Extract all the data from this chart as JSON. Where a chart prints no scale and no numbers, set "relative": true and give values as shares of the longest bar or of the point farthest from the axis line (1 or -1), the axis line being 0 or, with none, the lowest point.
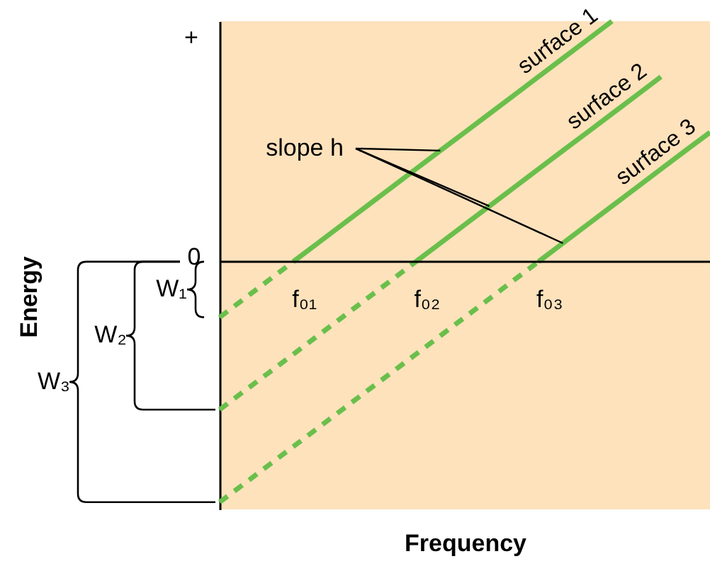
{
  "chart_data": {
    "type": "line",
    "relative": true,
    "xlabel": "Frequency",
    "categories": [
      null,
      null,
      null,
      null,
      null,
      null,
      null,
      null,
      null,
      null,
      null,
      null,
      null,
      null,
      null,
      null,
      null,
      null,
      null,
      null,
      null
    ],
    "series": [
      {
        "name": "surface 1",
        "color": "#6abf4b",
        "line_style": "solid",
        "values": [
          null,
          null,
          null,
          0,
          0.077,
          0.154,
          0.231,
          0.308,
          0.385,
          0.462,
          0.538,
          0.615,
          0.692,
          0.769,
          0.846,
          0.923,
          1,
          null,
          null,
          null,
          null
        ]
      },
      {
        "name": "surface 2",
        "color": "#6abf4b",
        "line_style": "solid",
        "values": [
          null,
          null,
          null,
          null,
          null,
          null,
          null,
          null,
          0,
          0.077,
          0.154,
          0.231,
          0.308,
          0.385,
          0.462,
          0.538,
          0.615,
          0.692,
          0.769,
          null,
          null
        ]
      },
      {
        "name": "surface 3",
        "color": "#6abf4b",
        "line_style": "solid",
        "values": [
          null,
          null,
          null,
          null,
          null,
          null,
          null,
          null,
          null,
          null,
          null,
          null,
          null,
          0,
          0.077,
          0.154,
          0.231,
          0.308,
          0.385,
          0.462,
          0.538
        ]
      },
      {
        "color": "#6abf4b",
        "line_style": "dashed",
        "values": [
          -0.231,
          -0.154,
          -0.077,
          0,
          null,
          null,
          null,
          null,
          null,
          null,
          null,
          null,
          null,
          null,
          null,
          null,
          null,
          null,
          null,
          null,
          null
        ]
      },
      {
        "color": "#6abf4b",
        "line_style": "dashed",
        "values": [
          -0.615,
          -0.538,
          -0.462,
          -0.385,
          -0.308,
          -0.231,
          -0.154,
          -0.077,
          0,
          null,
          null,
          null,
          null,
          null,
          null,
          null,
          null,
          null,
          null,
          null,
          null
        ]
      },
      {
        "color": "#6abf4b",
        "line_style": "dashed",
        "values": [
          -1,
          -0.923,
          -0.846,
          -0.769,
          -0.692,
          -0.615,
          -0.538,
          -0.462,
          -0.385,
          -0.308,
          -0.231,
          -0.154,
          -0.077,
          0,
          null,
          null,
          null,
          null,
          null,
          null,
          null
        ]
      }
    ],
    "annotations": [
      "+",
      "0",
      "f₀₁",
      "f₀₂",
      "f₀₃",
      "W₁",
      "W₂",
      "W₃",
      "slope h",
      "Energy"
    ]
  }
}
